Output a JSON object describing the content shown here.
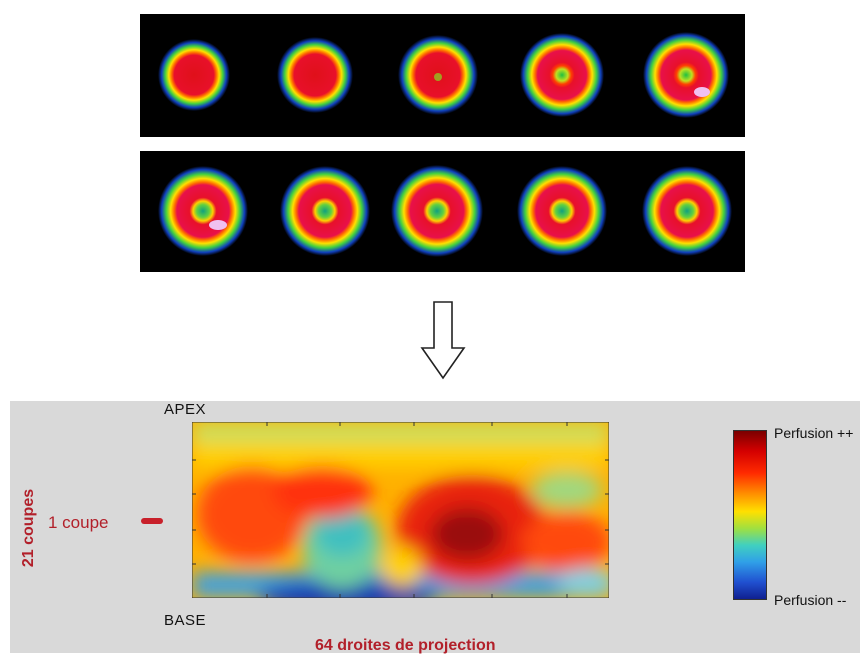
{
  "top_strips": {
    "row1_slices": [
      {
        "inner": "none"
      },
      {
        "inner": "none"
      },
      {
        "inner": "small"
      },
      {
        "inner": "ring"
      },
      {
        "inner": "ring"
      }
    ],
    "row2_slices": [
      {
        "inner": "ring"
      },
      {
        "inner": "ring"
      },
      {
        "inner": "ring"
      },
      {
        "inner": "ring"
      },
      {
        "inner": "ring"
      }
    ]
  },
  "arrow": {
    "icon": "down-arrow-icon"
  },
  "polar_map": {
    "apex_label": "APEX",
    "base_label": "BASE",
    "xaxis_label": "64 droites de projection",
    "yaxis_label": "21 coupes",
    "slice_label": "1 coupe",
    "colorbar": {
      "top_label": "Perfusion ++",
      "bottom_label": "Perfusion --",
      "colors": [
        "#7a0000",
        "#d40000",
        "#ff2a00",
        "#ff8c00",
        "#ffe000",
        "#a0e040",
        "#40d0c0",
        "#30a0e8",
        "#2050d0",
        "#102090"
      ]
    }
  }
}
